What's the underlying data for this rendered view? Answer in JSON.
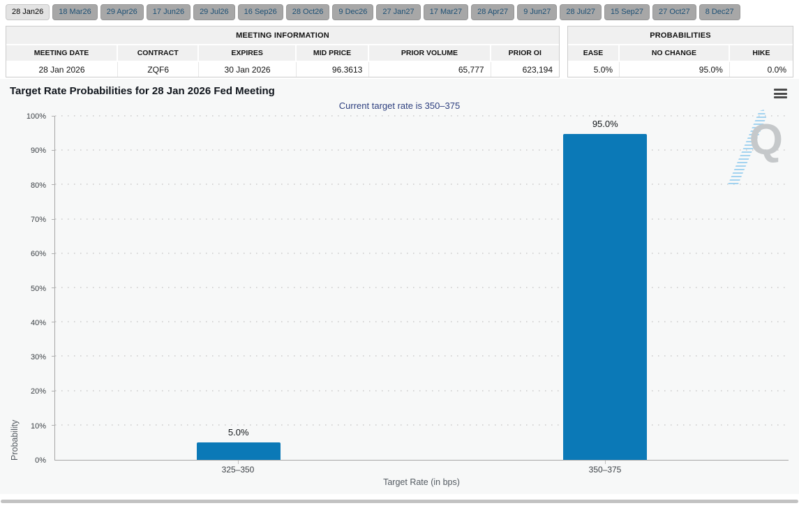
{
  "tabs": {
    "items": [
      "28 Jan26",
      "18 Mar26",
      "29 Apr26",
      "17 Jun26",
      "29 Jul26",
      "16 Sep26",
      "28 Oct26",
      "9 Dec26",
      "27 Jan27",
      "17 Mar27",
      "28 Apr27",
      "9 Jun27",
      "28 Jul27",
      "15 Sep27",
      "27 Oct27",
      "8 Dec27"
    ],
    "selected_index": 0
  },
  "meeting_info": {
    "title": "MEETING INFORMATION",
    "columns": [
      "MEETING DATE",
      "CONTRACT",
      "EXPIRES",
      "MID PRICE",
      "PRIOR VOLUME",
      "PRIOR OI"
    ],
    "row": [
      "28 Jan 2026",
      "ZQF6",
      "30 Jan 2026",
      "96.3613",
      "65,777",
      "623,194"
    ]
  },
  "probabilities": {
    "title": "PROBABILITIES",
    "columns": [
      "EASE",
      "NO CHANGE",
      "HIKE"
    ],
    "row": [
      "5.0%",
      "95.0%",
      "0.0%"
    ]
  },
  "chart_data": {
    "type": "bar",
    "title": "Target Rate Probabilities for 28 Jan 2026 Fed Meeting",
    "subtitle": "Current target rate is 350–375",
    "categories": [
      "325–350",
      "350–375"
    ],
    "values": [
      5.0,
      95.0
    ],
    "value_labels": [
      "5.0%",
      "95.0%"
    ],
    "xlabel": "Target Rate (in bps)",
    "ylabel": "Probability",
    "ylim": [
      0,
      100
    ],
    "y_ticks": [
      "0%",
      "10%",
      "20%",
      "30%",
      "40%",
      "50%",
      "60%",
      "70%",
      "80%",
      "90%",
      "100%"
    ],
    "bar_color": "#0b79b7",
    "grid": "horizontal-dotted",
    "legend": "none"
  },
  "icons": {
    "chart_menu": "hamburger-menu-icon"
  },
  "watermark": {
    "letter": "Q"
  }
}
